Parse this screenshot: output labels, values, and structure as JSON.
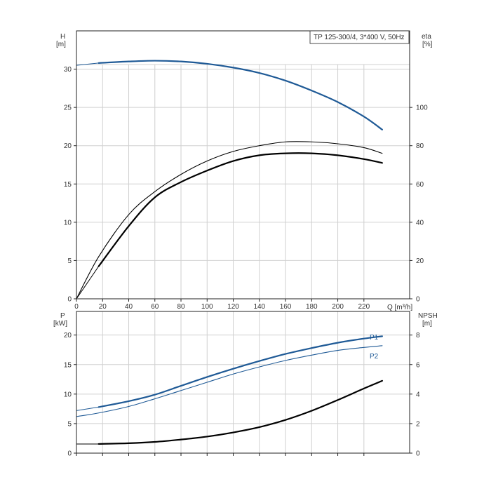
{
  "colors": {
    "head": "#1f5a96",
    "power": "#1f5a96",
    "eta": "#000000",
    "npsh": "#000000",
    "grid": "#d0d0d0",
    "frame": "#222222"
  },
  "chart_data": [
    {
      "type": "line",
      "title": "TP 125-300/4, 3*400 V, 50Hz",
      "xlabel": "Q [m³/h]",
      "ylabel_left": "H",
      "ylabel_left_unit": "[m]",
      "ylabel_right": "eta",
      "ylabel_right_unit": "[%]",
      "xlim": [
        0,
        255
      ],
      "xticks": [
        0,
        20,
        40,
        60,
        80,
        100,
        120,
        140,
        160,
        180,
        200,
        220
      ],
      "ylim_left": [
        0,
        35
      ],
      "yticks_left": [
        0,
        5,
        10,
        15,
        20,
        25,
        30
      ],
      "ylim_right": [
        0,
        140
      ],
      "yticks_right": [
        0,
        20,
        40,
        60,
        80,
        100
      ],
      "grid": true,
      "series": [
        {
          "kind": "head",
          "axis": "left",
          "stroke": "#1f5a96",
          "width": 2.2,
          "x": [
            17,
            40,
            60,
            80,
            100,
            120,
            140,
            160,
            180,
            200,
            220,
            234
          ],
          "y": [
            30.8,
            31.0,
            31.1,
            31.0,
            30.7,
            30.2,
            29.5,
            28.5,
            27.2,
            25.7,
            23.8,
            22.1
          ]
        },
        {
          "kind": "head-extension",
          "axis": "left",
          "stroke": "#1f5a96",
          "width": 1,
          "x": [
            0,
            17
          ],
          "y": [
            30.5,
            30.8
          ]
        },
        {
          "kind": "eta-pump",
          "axis": "right",
          "stroke": "#000000",
          "width": 1.1,
          "x": [
            0,
            17,
            40,
            60,
            80,
            100,
            120,
            140,
            160,
            180,
            200,
            220,
            234
          ],
          "y": [
            0,
            22,
            44,
            56,
            65,
            72,
            77,
            80,
            82,
            82,
            81,
            79,
            76
          ]
        },
        {
          "kind": "eta-total",
          "axis": "right",
          "stroke": "#000000",
          "width": 2.2,
          "x": [
            17,
            40,
            60,
            80,
            100,
            120,
            140,
            160,
            180,
            200,
            220,
            234
          ],
          "y": [
            17,
            38,
            53,
            61,
            67,
            72,
            75,
            76,
            76,
            75,
            73,
            71
          ]
        },
        {
          "kind": "eta-total-extension",
          "axis": "right",
          "stroke": "#000000",
          "width": 1,
          "x": [
            0,
            17
          ],
          "y": [
            0,
            17
          ]
        }
      ]
    },
    {
      "type": "line",
      "xlabel": "",
      "ylabel_left": "P",
      "ylabel_left_unit": "[kW]",
      "ylabel_right": "NPSH",
      "ylabel_right_unit": "[m]",
      "xlim": [
        0,
        255
      ],
      "ylim_left": [
        0,
        24
      ],
      "yticks_left": [
        0,
        5,
        10,
        15,
        20
      ],
      "ylim_right": [
        0,
        9.6
      ],
      "yticks_right": [
        0,
        2,
        4,
        6,
        8
      ],
      "grid": true,
      "series": [
        {
          "name": "P1",
          "kind": "power",
          "axis": "left",
          "stroke": "#1f5a96",
          "width": 2.2,
          "x": [
            17,
            40,
            60,
            80,
            100,
            120,
            140,
            160,
            180,
            200,
            220,
            234
          ],
          "y": [
            7.8,
            8.8,
            9.9,
            11.4,
            12.9,
            14.3,
            15.6,
            16.8,
            17.8,
            18.7,
            19.4,
            19.8
          ]
        },
        {
          "kind": "power-extension",
          "axis": "left",
          "stroke": "#1f5a96",
          "width": 1,
          "x": [
            0,
            17
          ],
          "y": [
            7.2,
            7.8
          ]
        },
        {
          "name": "P2",
          "kind": "power",
          "axis": "left",
          "stroke": "#1f5a96",
          "width": 1.1,
          "x": [
            0,
            17,
            40,
            60,
            80,
            100,
            120,
            140,
            160,
            180,
            200,
            220,
            234
          ],
          "y": [
            6.2,
            6.8,
            7.9,
            9.2,
            10.6,
            12.0,
            13.4,
            14.6,
            15.7,
            16.6,
            17.4,
            17.9,
            18.2
          ]
        },
        {
          "kind": "npsh",
          "axis": "right",
          "stroke": "#000000",
          "width": 2.2,
          "x": [
            17,
            40,
            60,
            80,
            100,
            120,
            140,
            160,
            180,
            200,
            220,
            234
          ],
          "y": [
            0.62,
            0.67,
            0.76,
            0.92,
            1.12,
            1.4,
            1.76,
            2.25,
            2.87,
            3.6,
            4.38,
            4.9
          ]
        },
        {
          "kind": "npsh-extension",
          "axis": "right",
          "stroke": "#000000",
          "width": 1,
          "x": [
            0,
            17
          ],
          "y": [
            0.62,
            0.62
          ]
        }
      ]
    }
  ]
}
